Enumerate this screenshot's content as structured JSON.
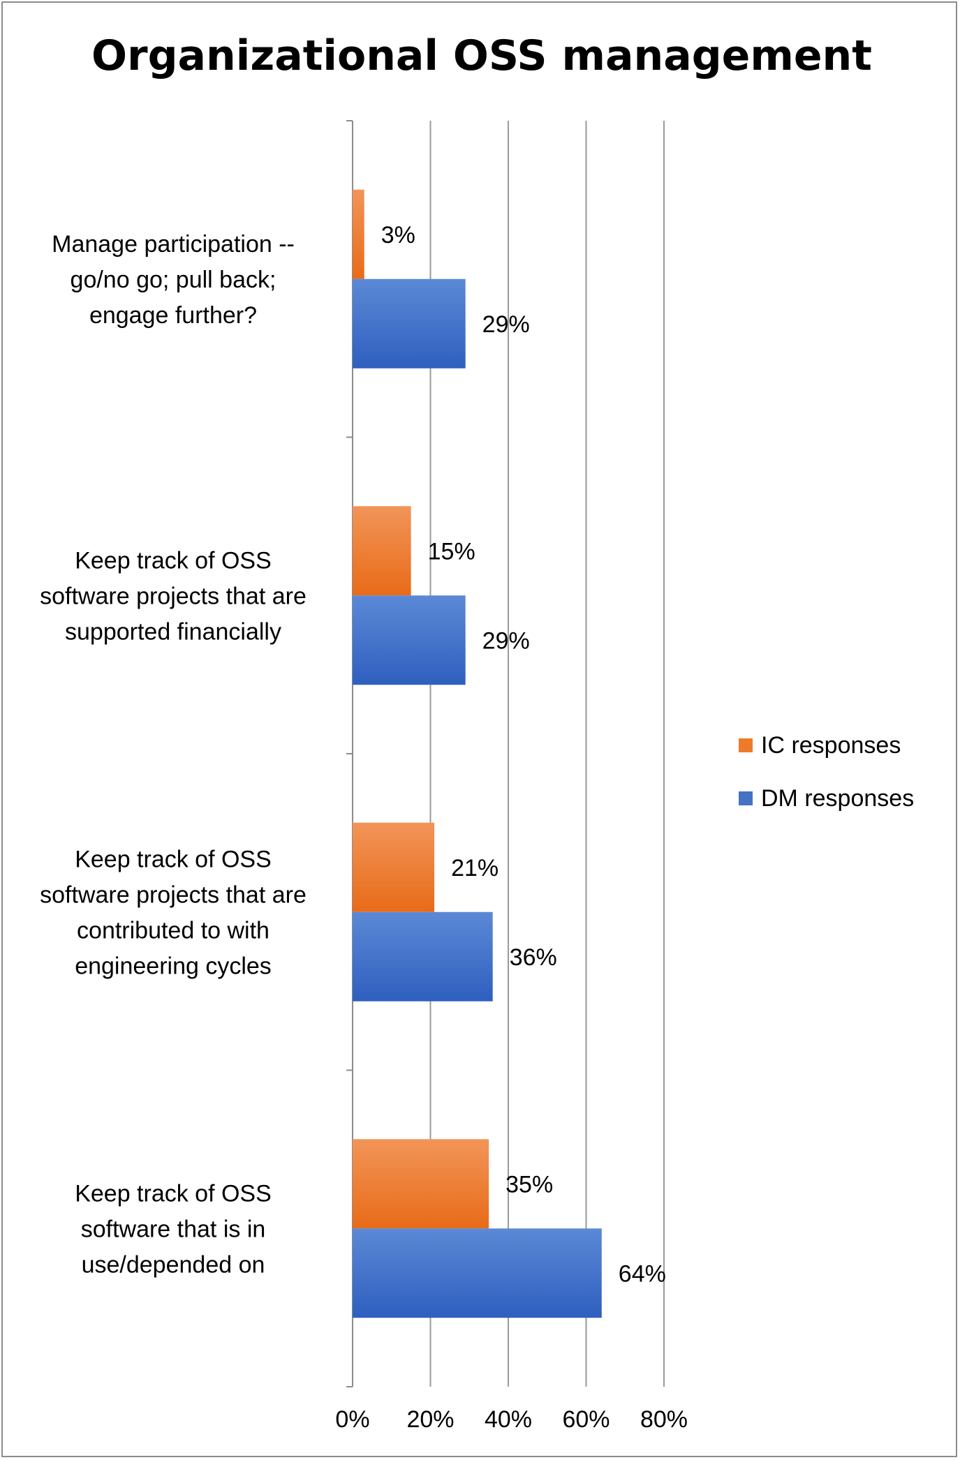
{
  "chart_data": {
    "type": "bar",
    "orientation": "horizontal",
    "title": "Organizational OSS management",
    "categories": [
      [
        "Manage participation --",
        "go/no go; pull back;",
        "engage further?"
      ],
      [
        "Keep track of OSS",
        "software projects that are",
        "supported financially"
      ],
      [
        "Keep track of OSS",
        "software projects that are",
        "contributed to with",
        "engineering cycles"
      ],
      [
        "Keep track of OSS",
        "software that is in",
        "use/depended on"
      ]
    ],
    "series": [
      {
        "name": "IC responses",
        "color": "#ee7b2a",
        "values": [
          3,
          15,
          21,
          35
        ],
        "labels": [
          "3%",
          "15%",
          "21%",
          "35%"
        ]
      },
      {
        "name": "DM responses",
        "color": "#4472c4",
        "values": [
          29,
          29,
          36,
          64
        ],
        "labels": [
          "29%",
          "29%",
          "36%",
          "64%"
        ]
      }
    ],
    "xlim": [
      0,
      80
    ],
    "xticks": [
      0,
      20,
      40,
      60,
      80
    ],
    "xtick_labels": [
      "0%",
      "20%",
      "40%",
      "60%",
      "80%"
    ],
    "grid": true,
    "legend_position": "right"
  }
}
